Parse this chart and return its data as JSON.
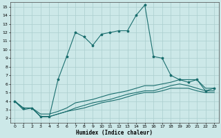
{
  "xlabel": "Humidex (Indice chaleur)",
  "bg_color": "#cce8e8",
  "grid_color": "#aacece",
  "line_color": "#1a6e6e",
  "xlim": [
    -0.5,
    23.5
  ],
  "ylim": [
    1.5,
    15.5
  ],
  "xticks": [
    0,
    1,
    2,
    3,
    4,
    5,
    6,
    7,
    8,
    9,
    10,
    11,
    12,
    13,
    14,
    15,
    16,
    17,
    18,
    19,
    20,
    21,
    22,
    23
  ],
  "yticks": [
    2,
    3,
    4,
    5,
    6,
    7,
    8,
    9,
    10,
    11,
    12,
    13,
    14,
    15
  ],
  "lines": [
    {
      "x": [
        0,
        1,
        2,
        3,
        4,
        5,
        6,
        7,
        8,
        9,
        10,
        11,
        12,
        13,
        14,
        15,
        16,
        17,
        18,
        19,
        20,
        21,
        22,
        23
      ],
      "y": [
        4,
        3.2,
        3.2,
        2.2,
        2.2,
        6.5,
        9.2,
        12,
        11.5,
        10.5,
        11.8,
        12,
        12.2,
        12.2,
        14,
        15.2,
        9.2,
        9,
        7,
        6.5,
        6.2,
        6.5,
        5.2,
        5.5
      ],
      "marker": true
    },
    {
      "x": [
        0,
        1,
        2,
        3,
        4,
        5,
        6,
        7,
        8,
        9,
        10,
        11,
        12,
        13,
        14,
        15,
        16,
        17,
        18,
        19,
        20,
        21,
        22,
        23
      ],
      "y": [
        4,
        3.2,
        3.2,
        2.5,
        2.5,
        2.8,
        3.2,
        3.8,
        4.0,
        4.2,
        4.5,
        4.8,
        5.0,
        5.2,
        5.5,
        5.8,
        5.8,
        6.0,
        6.2,
        6.5,
        6.5,
        6.5,
        5.5,
        5.5
      ],
      "marker": false
    },
    {
      "x": [
        0,
        1,
        2,
        3,
        4,
        5,
        6,
        7,
        8,
        9,
        10,
        11,
        12,
        13,
        14,
        15,
        16,
        17,
        18,
        19,
        20,
        21,
        22,
        23
      ],
      "y": [
        4,
        3.2,
        3.2,
        2.2,
        2.2,
        2.5,
        2.8,
        3.2,
        3.5,
        3.8,
        4.0,
        4.2,
        4.5,
        4.8,
        5.0,
        5.2,
        5.2,
        5.5,
        5.8,
        6.0,
        5.8,
        5.5,
        5.2,
        5.2
      ],
      "marker": false
    },
    {
      "x": [
        0,
        1,
        2,
        3,
        4,
        5,
        6,
        7,
        8,
        9,
        10,
        11,
        12,
        13,
        14,
        15,
        16,
        17,
        18,
        19,
        20,
        21,
        22,
        23
      ],
      "y": [
        4,
        3.0,
        3.2,
        2.2,
        2.2,
        2.5,
        2.8,
        3.0,
        3.2,
        3.5,
        3.8,
        4.0,
        4.2,
        4.5,
        4.8,
        5.0,
        5.0,
        5.2,
        5.5,
        5.5,
        5.5,
        5.2,
        5.0,
        5.0
      ],
      "marker": false
    }
  ]
}
